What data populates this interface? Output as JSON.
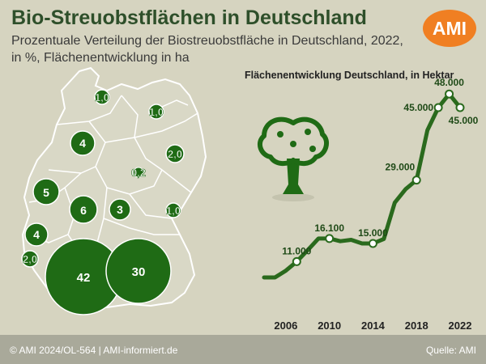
{
  "header": {
    "title": "Bio-Streuobstflächen in Deutschland",
    "subtitle_line1": "Prozentuale Verteilung der Biostreuobstfläche in Deutschland, 2022,",
    "subtitle_line2": "in %, Flächenentwicklung in ha",
    "logo_text": "AMI"
  },
  "colors": {
    "background": "#d6d4c0",
    "map_fill": "#d8d7c6",
    "map_border": "#ffffff",
    "bubble": "#1f6b15",
    "line": "#2a6a1d",
    "accent": "#f07f22"
  },
  "icons": [
    "tree-icon"
  ],
  "map_values": [
    {
      "label": "1,0",
      "value": 1.0
    },
    {
      "label": "1,0",
      "value": 1.0
    },
    {
      "label": "4",
      "value": 4
    },
    {
      "label": "2,0",
      "value": 2.0
    },
    {
      "label": "0,2",
      "value": 0.2
    },
    {
      "label": "5",
      "value": 5
    },
    {
      "label": "6",
      "value": 6
    },
    {
      "label": "3",
      "value": 3
    },
    {
      "label": "1,0",
      "value": 1.0
    },
    {
      "label": "4",
      "value": 4
    },
    {
      "label": "2,0",
      "value": 2.0
    },
    {
      "label": "42",
      "value": 42
    },
    {
      "label": "30",
      "value": 30
    }
  ],
  "chart_data": {
    "type": "line",
    "title": "Flächenentwicklung Deutschland, in Hektar",
    "x": [
      2004,
      2005,
      2006,
      2007,
      2008,
      2009,
      2010,
      2011,
      2012,
      2013,
      2014,
      2015,
      2016,
      2017,
      2018,
      2019,
      2020,
      2021,
      2022
    ],
    "series": [
      {
        "values": [
          7500,
          7500,
          9000,
          11000,
          13500,
          16100,
          16100,
          15500,
          15800,
          15000,
          15000,
          16000,
          24000,
          27000,
          29000,
          40000,
          45000,
          48000,
          45000
        ]
      }
    ],
    "point_labels": [
      {
        "x": 2007,
        "text": "11.000"
      },
      {
        "x": 2010,
        "text": "16.100"
      },
      {
        "x": 2014,
        "text": "15.000"
      },
      {
        "x": 2018,
        "text": "29.000"
      },
      {
        "x": 2020,
        "text": "45.000"
      },
      {
        "x": 2021,
        "text": "48.000"
      },
      {
        "x": 2022,
        "text": "45.000"
      }
    ],
    "xticks": [
      "2006",
      "2010",
      "2014",
      "2018",
      "2022"
    ],
    "xtick_values": [
      2006,
      2010,
      2014,
      2018,
      2022
    ],
    "xlim": [
      2004,
      2022
    ],
    "ylim": [
      0,
      50000
    ],
    "grid": false
  },
  "footer": {
    "left": "© AMI 2024/OL-564 | AMI-informiert.de",
    "right": "Quelle: AMI"
  }
}
